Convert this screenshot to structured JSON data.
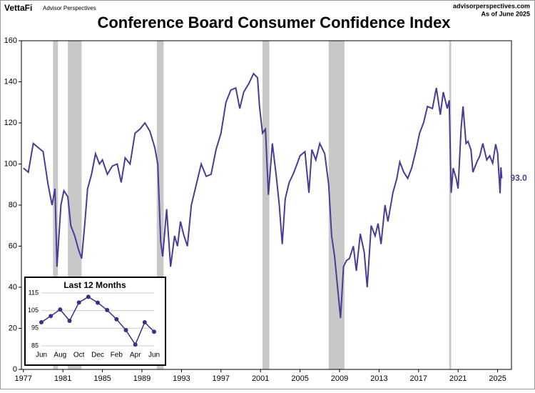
{
  "header": {
    "brand": "VettaFi",
    "brand_sub": "Advisor Perspectives",
    "site": "advisorperspectives.com",
    "as_of": "As of June 2025"
  },
  "chart_data": [
    {
      "type": "line",
      "title": "Conference Board Consumer Confidence Index",
      "xlim": [
        1976.8,
        2026.4
      ],
      "xticks": [
        1977,
        1981,
        1985,
        1989,
        1993,
        1997,
        2001,
        2005,
        2009,
        2013,
        2017,
        2021,
        2025
      ],
      "ylim": [
        0,
        160
      ],
      "yticks": [
        0,
        20,
        40,
        60,
        80,
        100,
        120,
        140,
        160
      ],
      "grid": false,
      "recessions": [
        [
          1980.0,
          1980.5
        ],
        [
          1981.5,
          1982.9
        ],
        [
          1990.5,
          1991.2
        ],
        [
          2001.2,
          2001.9
        ],
        [
          2007.9,
          2009.5
        ],
        [
          2020.1,
          2020.3
        ]
      ],
      "series": [
        {
          "color": "#4b3a96",
          "x": [
            1977.0,
            1977.5,
            1978.0,
            1978.5,
            1979.0,
            1979.5,
            1979.9,
            1980.2,
            1980.4,
            1980.8,
            1981.1,
            1981.5,
            1981.8,
            1982.2,
            1982.6,
            1982.9,
            1983.2,
            1983.5,
            1983.9,
            1984.3,
            1984.7,
            1985.0,
            1985.5,
            1986.0,
            1986.5,
            1986.9,
            1987.3,
            1987.8,
            1988.3,
            1988.8,
            1989.3,
            1989.8,
            1990.3,
            1990.6,
            1990.9,
            1991.1,
            1991.5,
            1991.9,
            1992.3,
            1992.6,
            1992.9,
            1993.2,
            1993.6,
            1994.0,
            1994.5,
            1995.0,
            1995.5,
            1996.0,
            1996.5,
            1997.0,
            1997.5,
            1998.0,
            1998.5,
            1998.9,
            1999.3,
            1999.8,
            2000.3,
            2000.7,
            2000.9,
            2001.2,
            2001.5,
            2001.8,
            2002.2,
            2002.6,
            2002.9,
            2003.2,
            2003.5,
            2003.9,
            2004.3,
            2004.7,
            2005.0,
            2005.5,
            2005.9,
            2006.2,
            2006.6,
            2007.0,
            2007.5,
            2007.9,
            2008.2,
            2008.5,
            2008.8,
            2009.1,
            2009.4,
            2009.7,
            2010.0,
            2010.4,
            2010.7,
            2011.1,
            2011.5,
            2011.8,
            2012.2,
            2012.6,
            2012.9,
            2013.2,
            2013.6,
            2013.9,
            2014.4,
            2014.8,
            2015.1,
            2015.5,
            2015.9,
            2016.3,
            2016.8,
            2017.1,
            2017.5,
            2017.9,
            2018.4,
            2018.8,
            2019.2,
            2019.5,
            2019.9,
            2020.1,
            2020.3,
            2020.5,
            2020.8,
            2021.0,
            2021.3,
            2021.5,
            2021.8,
            2022.0,
            2022.3,
            2022.5,
            2022.9,
            2023.2,
            2023.5,
            2023.9,
            2024.2,
            2024.5,
            2024.8,
            2025.0,
            2025.25,
            2025.33,
            2025.42
          ],
          "values": [
            98,
            96,
            110,
            108,
            106,
            90,
            80,
            88,
            50,
            80,
            87,
            84,
            70,
            65,
            58,
            54,
            70,
            88,
            95,
            105,
            100,
            102,
            95,
            99,
            100,
            91,
            103,
            100,
            115,
            117,
            120,
            116,
            108,
            100,
            62,
            55,
            78,
            50,
            65,
            60,
            72,
            66,
            60,
            80,
            90,
            100,
            94,
            95,
            107,
            115,
            130,
            136,
            137,
            127,
            135,
            139,
            144,
            142,
            128,
            115,
            117,
            85,
            110,
            94,
            80,
            61,
            83,
            91,
            95,
            100,
            104,
            106,
            86,
            107,
            102,
            110,
            105,
            90,
            65,
            55,
            40,
            25,
            50,
            53,
            54,
            60,
            48,
            66,
            57,
            40,
            70,
            65,
            71,
            61,
            80,
            72,
            86,
            93,
            101,
            96,
            93,
            98,
            108,
            115,
            120,
            128,
            127,
            137,
            124,
            135,
            127,
            131,
            86,
            98,
            93,
            88,
            117,
            128,
            110,
            111,
            107,
            96,
            101,
            104,
            110,
            102,
            104,
            100.4,
            109.6,
            105.3,
            85.7,
            98.4,
            93.0
          ],
          "value_labels": [
            null,
            null,
            null,
            null,
            null,
            null,
            null,
            null,
            null,
            null,
            null,
            null,
            null,
            null,
            null,
            null,
            null,
            null,
            null,
            null,
            null,
            null,
            null,
            null,
            null,
            null,
            null,
            null,
            null,
            null,
            null,
            null,
            null,
            null,
            null,
            null,
            null,
            null,
            null,
            null,
            null,
            null,
            null,
            null,
            null,
            null,
            null,
            null,
            null,
            null,
            null,
            null,
            null,
            null,
            null,
            null,
            null,
            null,
            null,
            null,
            null,
            null,
            null,
            null,
            null,
            null,
            null,
            null,
            null,
            null,
            null,
            null,
            null,
            null,
            null,
            null,
            null,
            null,
            null,
            null,
            null,
            null,
            null,
            null,
            null,
            null,
            null,
            null,
            null,
            null,
            null,
            null,
            null,
            null,
            null,
            null,
            null,
            null,
            null,
            null,
            null,
            null,
            null,
            null,
            null,
            null,
            null,
            null,
            null,
            null,
            null,
            null,
            null,
            null,
            null,
            null,
            null,
            null,
            null,
            null,
            null,
            null,
            null,
            null,
            null,
            null,
            null,
            null,
            null,
            null,
            null,
            null,
            "93.0"
          ]
        }
      ]
    },
    {
      "type": "line",
      "title": "Last 12 Months",
      "categories": [
        "Jun",
        null,
        "Aug",
        null,
        "Oct",
        null,
        "Dec",
        null,
        "Feb",
        null,
        "Apr",
        null,
        "Jun"
      ],
      "ylim": [
        85,
        115
      ],
      "yticks": [
        85,
        95,
        105,
        115
      ],
      "grid": true,
      "series": [
        {
          "color": "#3a2f8a",
          "values": [
            98.4,
            101.9,
            105.6,
            99.2,
            109.6,
            112.8,
            109.5,
            105.3,
            100.1,
            93.9,
            85.7,
            98.4,
            93.0
          ]
        }
      ]
    }
  ]
}
